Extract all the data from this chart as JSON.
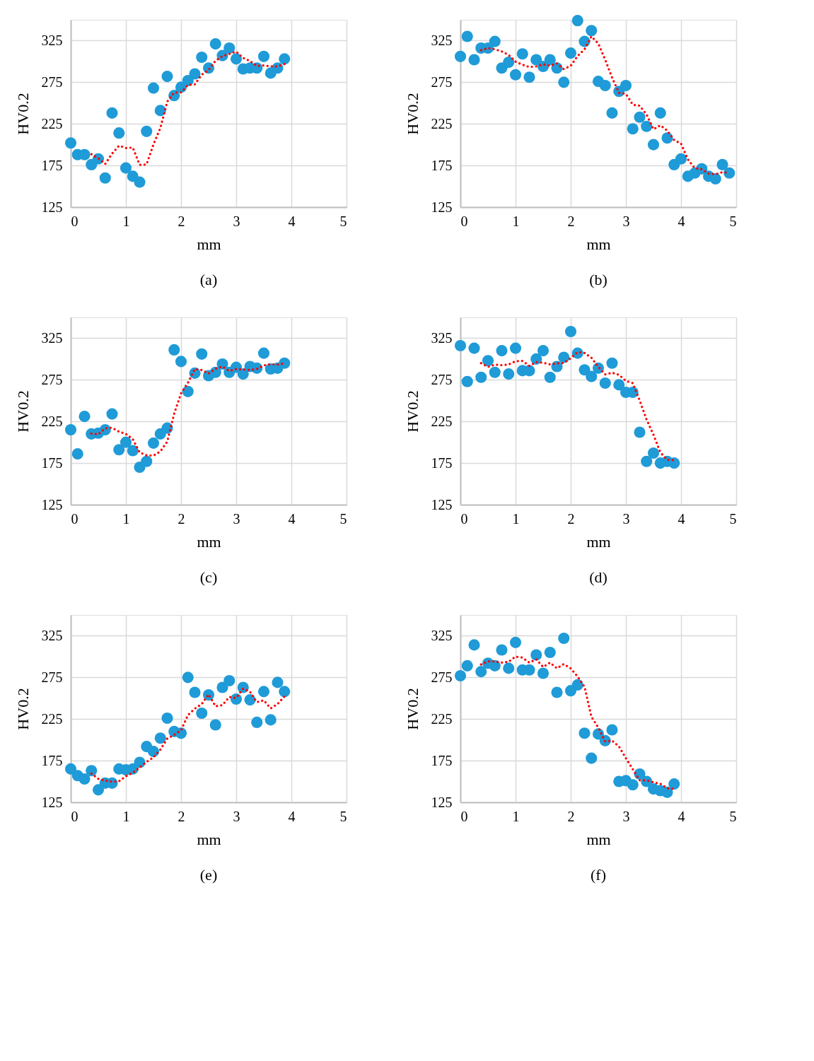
{
  "chart_data": [
    {
      "type": "scatter",
      "xlabel": "mm",
      "ylabel": "HV0.2",
      "xlim": [
        0,
        5
      ],
      "xticks": [
        0,
        1,
        2,
        3,
        4,
        5
      ],
      "ylim": [
        125,
        350
      ],
      "yticks": [
        125,
        175,
        225,
        275,
        325
      ],
      "grid": true,
      "annotations": [
        "(a)"
      ],
      "series": [
        {
          "type": "scatter",
          "marker": "circle",
          "color": "#1f9bd7",
          "x": [
            0,
            0.125,
            0.25,
            0.375,
            0.5,
            0.625,
            0.75,
            0.875,
            1,
            1.125,
            1.25,
            1.375,
            1.5,
            1.625,
            1.75,
            1.875,
            2,
            2.125,
            2.25,
            2.375,
            2.5,
            2.625,
            2.75,
            2.875,
            3,
            3.125,
            3.25,
            3.375,
            3.5,
            3.625,
            3.75,
            3.875
          ],
          "values": [
            202,
            188,
            188,
            176,
            183,
            160,
            238,
            214,
            172,
            162,
            155,
            216,
            268,
            241,
            282,
            259,
            269,
            277,
            285,
            305,
            292,
            321,
            307,
            316,
            303,
            291,
            292,
            292,
            306,
            286,
            292,
            303
          ]
        },
        {
          "type": "line",
          "line_style": "dotted",
          "color": "#ff0000",
          "x": [
            0.375,
            0.5,
            0.625,
            0.75,
            0.875,
            1,
            1.125,
            1.25,
            1.375,
            1.5,
            1.625,
            1.75,
            1.875,
            2,
            2.125,
            2.25,
            2.375,
            2.5,
            2.625,
            2.75,
            2.875,
            3,
            3.125,
            3.25,
            3.375,
            3.5,
            3.625,
            3.75,
            3.875
          ],
          "values": [
            188.5,
            183.75,
            176.75,
            189.25,
            198.75,
            196,
            196.5,
            175.75,
            176.25,
            200.25,
            220,
            251.75,
            262.5,
            262.75,
            271.75,
            272.5,
            284,
            289.75,
            300.75,
            306.25,
            309,
            311.75,
            304.25,
            300.5,
            294.5,
            295.25,
            294,
            294,
            296.75
          ]
        }
      ]
    },
    {
      "type": "scatter",
      "xlabel": "mm",
      "ylabel": "HV0.2",
      "xlim": [
        0,
        5
      ],
      "xticks": [
        0,
        1,
        2,
        3,
        4,
        5
      ],
      "ylim": [
        125,
        350
      ],
      "yticks": [
        125,
        175,
        225,
        275,
        325
      ],
      "grid": true,
      "annotations": [
        "(b)"
      ],
      "series": [
        {
          "type": "scatter",
          "marker": "circle",
          "color": "#1f9bd7",
          "x": [
            0,
            0.125,
            0.25,
            0.375,
            0.5,
            0.625,
            0.75,
            0.875,
            1,
            1.125,
            1.25,
            1.375,
            1.5,
            1.625,
            1.75,
            1.875,
            2,
            2.125,
            2.25,
            2.375,
            2.5,
            2.625,
            2.75,
            2.875,
            3,
            3.125,
            3.25,
            3.375,
            3.5,
            3.625,
            3.75,
            3.875,
            4,
            4.125,
            4.25,
            4.375,
            4.5,
            4.625,
            4.75,
            4.875
          ],
          "values": [
            306,
            330,
            302,
            316,
            316,
            324,
            292,
            299,
            284,
            309,
            281,
            302,
            294,
            302,
            292,
            275,
            310,
            349,
            324,
            337,
            276,
            271,
            238,
            264,
            271,
            219,
            233,
            222,
            200,
            238,
            208,
            176,
            183,
            162,
            166,
            171,
            162,
            159,
            176,
            166
          ]
        },
        {
          "type": "line",
          "line_style": "dotted",
          "color": "#ff0000",
          "x": [
            0.375,
            0.5,
            0.625,
            0.75,
            0.875,
            1,
            1.125,
            1.25,
            1.375,
            1.5,
            1.625,
            1.75,
            1.875,
            2,
            2.125,
            2.25,
            2.375,
            2.5,
            2.625,
            2.75,
            2.875,
            3,
            3.125,
            3.25,
            3.375,
            3.5,
            3.625,
            3.75,
            3.875,
            4,
            4.125,
            4.25,
            4.375,
            4.5,
            4.625,
            4.75,
            4.875
          ],
          "values": [
            313.5,
            316,
            314.5,
            312,
            307.75,
            299.75,
            296,
            293.25,
            294,
            296.5,
            294.75,
            297.5,
            290.75,
            294.75,
            306.5,
            314.5,
            330,
            321.5,
            302,
            280.5,
            262.25,
            261,
            248,
            246.75,
            236.25,
            218.5,
            223.25,
            217,
            205.5,
            201.25,
            182.25,
            171.75,
            170.5,
            165.25,
            164.5,
            167,
            165.75
          ]
        }
      ]
    },
    {
      "type": "scatter",
      "xlabel": "mm",
      "ylabel": "HV0.2",
      "xlim": [
        0,
        5
      ],
      "xticks": [
        0,
        1,
        2,
        3,
        4,
        5
      ],
      "ylim": [
        125,
        350
      ],
      "yticks": [
        125,
        175,
        225,
        275,
        325
      ],
      "grid": true,
      "annotations": [
        "(c)"
      ],
      "series": [
        {
          "type": "scatter",
          "marker": "circle",
          "color": "#1f9bd7",
          "x": [
            0,
            0.125,
            0.25,
            0.375,
            0.5,
            0.625,
            0.75,
            0.875,
            1,
            1.125,
            1.25,
            1.375,
            1.5,
            1.625,
            1.75,
            1.875,
            2,
            2.125,
            2.25,
            2.375,
            2.5,
            2.625,
            2.75,
            2.875,
            3,
            3.125,
            3.25,
            3.375,
            3.5,
            3.625,
            3.75,
            3.875
          ],
          "values": [
            215,
            186,
            231,
            210,
            211,
            215,
            234,
            191,
            200,
            190,
            170,
            177,
            199,
            210,
            217,
            311,
            297,
            261,
            283,
            306,
            280,
            284,
            294,
            284,
            290,
            282,
            291,
            289,
            307,
            288,
            289,
            295
          ]
        },
        {
          "type": "line",
          "line_style": "dotted",
          "color": "#ff0000",
          "x": [
            0.375,
            0.5,
            0.625,
            0.75,
            0.875,
            1,
            1.125,
            1.25,
            1.375,
            1.5,
            1.625,
            1.75,
            1.875,
            2,
            2.125,
            2.25,
            2.375,
            2.5,
            2.625,
            2.75,
            2.875,
            3,
            3.125,
            3.25,
            3.375,
            3.5,
            3.625,
            3.75,
            3.875
          ],
          "values": [
            210.5,
            209.5,
            216.75,
            217.5,
            212.75,
            210,
            203.75,
            187.75,
            184.25,
            184,
            189,
            200.75,
            234.25,
            258.75,
            271.5,
            288,
            286.75,
            282.5,
            288.25,
            291,
            285.5,
            288,
            287.5,
            286.75,
            288,
            292.25,
            293.75,
            293.25,
            294.75
          ]
        }
      ]
    },
    {
      "type": "scatter",
      "xlabel": "mm",
      "ylabel": "HV0.2",
      "xlim": [
        0,
        5
      ],
      "xticks": [
        0,
        1,
        2,
        3,
        4,
        5
      ],
      "ylim": [
        125,
        350
      ],
      "yticks": [
        125,
        175,
        225,
        275,
        325
      ],
      "grid": true,
      "annotations": [
        "(d)"
      ],
      "series": [
        {
          "type": "scatter",
          "marker": "circle",
          "color": "#1f9bd7",
          "x": [
            0,
            0.125,
            0.25,
            0.375,
            0.5,
            0.625,
            0.75,
            0.875,
            1,
            1.125,
            1.25,
            1.375,
            1.5,
            1.625,
            1.75,
            1.875,
            2,
            2.125,
            2.25,
            2.375,
            2.5,
            2.625,
            2.75,
            2.875,
            3,
            3.125,
            3.25,
            3.375,
            3.5,
            3.625,
            3.75,
            3.875
          ],
          "values": [
            316,
            273,
            313,
            278,
            298,
            284,
            310,
            282,
            313,
            286,
            286,
            300,
            310,
            278,
            291,
            302,
            333,
            307,
            287,
            279,
            289,
            271,
            295,
            269,
            260,
            260,
            212,
            177,
            187,
            175,
            177,
            175
          ]
        },
        {
          "type": "line",
          "line_style": "dotted",
          "color": "#ff0000",
          "x": [
            0.375,
            0.5,
            0.625,
            0.75,
            0.875,
            1,
            1.125,
            1.25,
            1.375,
            1.5,
            1.625,
            1.75,
            1.875,
            2,
            2.125,
            2.25,
            2.375,
            2.5,
            2.625,
            2.75,
            2.875,
            3,
            3.125,
            3.25,
            3.375,
            3.5,
            3.625,
            3.75,
            3.875
          ],
          "values": [
            295,
            290.5,
            293.25,
            292.5,
            293.5,
            297.25,
            297.75,
            291.75,
            296.25,
            295.5,
            293.5,
            294.75,
            295.25,
            301,
            308.25,
            307.25,
            301.5,
            290.5,
            281.5,
            283.5,
            281,
            273.75,
            271,
            250.25,
            227.25,
            209,
            187.75,
            179,
            178.5
          ]
        }
      ]
    },
    {
      "type": "scatter",
      "xlabel": "mm",
      "ylabel": "HV0.2",
      "xlim": [
        0,
        5
      ],
      "xticks": [
        0,
        1,
        2,
        3,
        4,
        5
      ],
      "ylim": [
        125,
        350
      ],
      "yticks": [
        125,
        175,
        225,
        275,
        325
      ],
      "grid": true,
      "annotations": [
        "(e)"
      ],
      "series": [
        {
          "type": "scatter",
          "marker": "circle",
          "color": "#1f9bd7",
          "x": [
            0,
            0.125,
            0.25,
            0.375,
            0.5,
            0.625,
            0.75,
            0.875,
            1,
            1.125,
            1.25,
            1.375,
            1.5,
            1.625,
            1.75,
            1.875,
            2,
            2.125,
            2.25,
            2.375,
            2.5,
            2.625,
            2.75,
            2.875,
            3,
            3.125,
            3.25,
            3.375,
            3.5,
            3.625,
            3.75,
            3.875
          ],
          "values": [
            165,
            157,
            153,
            163,
            140,
            148,
            148,
            165,
            164,
            165,
            173,
            192,
            186,
            202,
            226,
            210,
            208,
            275,
            257,
            232,
            254,
            218,
            263,
            271,
            249,
            263,
            248,
            221,
            258,
            224,
            269,
            258
          ]
        },
        {
          "type": "line",
          "line_style": "dotted",
          "color": "#ff0000",
          "x": [
            0.375,
            0.5,
            0.625,
            0.75,
            0.875,
            1,
            1.125,
            1.25,
            1.375,
            1.5,
            1.625,
            1.75,
            1.875,
            2,
            2.125,
            2.25,
            2.375,
            2.5,
            2.625,
            2.75,
            2.875,
            3,
            3.125,
            3.25,
            3.375,
            3.5,
            3.625,
            3.75,
            3.875
          ],
          "values": [
            159.5,
            153.25,
            151,
            149.75,
            150.25,
            156.25,
            160.5,
            166.75,
            173.5,
            179,
            188.25,
            201.5,
            206,
            211.5,
            229.75,
            237.5,
            243,
            254.5,
            240.25,
            241.75,
            251.5,
            250.25,
            261.5,
            257.75,
            245.25,
            247.5,
            237.75,
            243,
            252.25
          ]
        }
      ]
    },
    {
      "type": "scatter",
      "xlabel": "mm",
      "ylabel": "HV0.2",
      "xlim": [
        0,
        5
      ],
      "xticks": [
        0,
        1,
        2,
        3,
        4,
        5
      ],
      "ylim": [
        125,
        350
      ],
      "yticks": [
        125,
        175,
        225,
        275,
        325
      ],
      "grid": true,
      "annotations": [
        "(f)"
      ],
      "series": [
        {
          "type": "scatter",
          "marker": "circle",
          "color": "#1f9bd7",
          "x": [
            0,
            0.125,
            0.25,
            0.375,
            0.5,
            0.625,
            0.75,
            0.875,
            1,
            1.125,
            1.25,
            1.375,
            1.5,
            1.625,
            1.75,
            1.875,
            2,
            2.125,
            2.25,
            2.375,
            2.5,
            2.625,
            2.75,
            2.875,
            3,
            3.125,
            3.25,
            3.375,
            3.5,
            3.625,
            3.75,
            3.875
          ],
          "values": [
            277,
            289,
            314,
            282,
            292,
            289,
            308,
            286,
            317,
            284,
            284,
            302,
            280,
            305,
            257,
            322,
            259,
            266,
            208,
            178,
            207,
            199,
            212,
            150,
            151,
            146,
            159,
            150,
            141,
            139,
            137,
            147
          ]
        },
        {
          "type": "line",
          "line_style": "dotted",
          "color": "#ff0000",
          "x": [
            0.375,
            0.5,
            0.625,
            0.75,
            0.875,
            1,
            1.125,
            1.25,
            1.375,
            1.5,
            1.625,
            1.75,
            1.875,
            2,
            2.125,
            2.25,
            2.375,
            2.5,
            2.625,
            2.75,
            2.875,
            3,
            3.125,
            3.25,
            3.375,
            3.5,
            3.625,
            3.75,
            3.875
          ],
          "values": [
            290.5,
            294.25,
            294.25,
            292.75,
            293.75,
            300,
            298.75,
            292.75,
            296.75,
            287.5,
            292.75,
            286,
            291,
            285.75,
            276,
            263.75,
            227.75,
            214.75,
            198,
            199,
            192,
            178,
            164.75,
            151.5,
            151.5,
            149,
            147.25,
            141.75,
            141
          ]
        }
      ]
    }
  ]
}
